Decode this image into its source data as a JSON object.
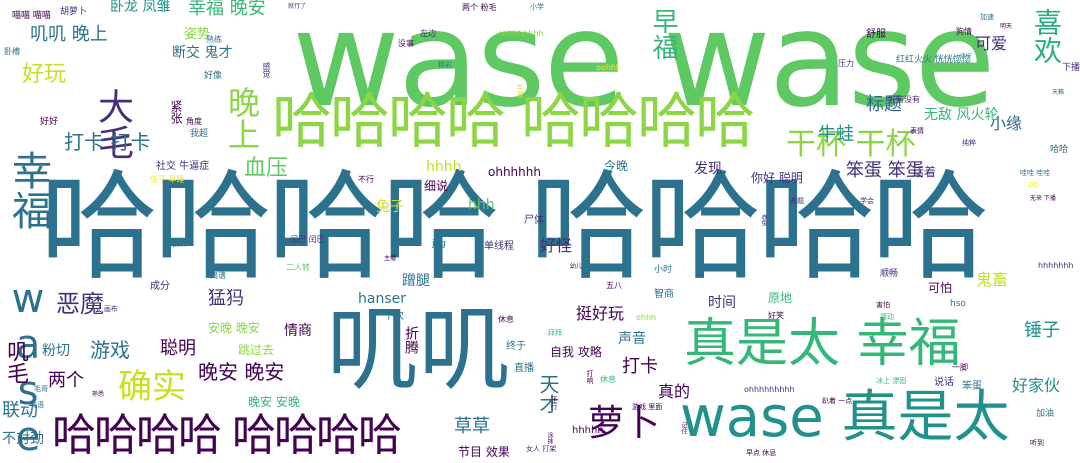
{
  "palette": {
    "lime": "#8cd645",
    "green": "#5ec962",
    "teal_green": "#35b779",
    "teal": "#21918c",
    "blue_teal": "#2c728e",
    "blue": "#3b528b",
    "purple": "#472d7b",
    "dark_purple": "#440154",
    "yellow": "#c8e020",
    "bright_yellow": "#fde725",
    "light_green": "#addc30",
    "aqua": "#28ae80",
    "sea": "#1f9e89",
    "navy": "#31688e"
  },
  "words": [
    {
      "text": "wase wase",
      "size": 132,
      "color": "#5ec962",
      "vertical": false
    },
    {
      "text": "哈哈哈哈 哈哈哈哈",
      "size": 118,
      "color": "#2c728e",
      "vertical": false
    },
    {
      "text": "哈哈哈哈 哈哈哈哈",
      "size": 60,
      "color": "#8cd645",
      "vertical": false
    },
    {
      "text": "叽叽",
      "size": 92,
      "color": "#2c728e",
      "vertical": false
    },
    {
      "text": "真是太 幸福",
      "size": 52,
      "color": "#35b779",
      "vertical": false
    },
    {
      "text": "wase 真是太",
      "size": 56,
      "color": "#21918c",
      "vertical": false
    },
    {
      "text": "哈哈哈哈 哈哈哈哈",
      "size": 44,
      "color": "#440154",
      "vertical": false
    },
    {
      "text": "幸福 wase",
      "size": 40,
      "color": "#2c728e",
      "vertical": true
    },
    {
      "text": "大毛",
      "size": 36,
      "color": "#472d7b",
      "vertical": true
    },
    {
      "text": "晚上",
      "size": 32,
      "color": "#8cd645",
      "vertical": true
    },
    {
      "text": "干杯 干杯",
      "size": 30,
      "color": "#8cd645",
      "vertical": false
    },
    {
      "text": "萝卜",
      "size": 36,
      "color": "#440154",
      "vertical": false
    },
    {
      "text": "确实",
      "size": 34,
      "color": "#c8e020",
      "vertical": false
    },
    {
      "text": "喜欢",
      "size": 28,
      "color": "#28ae80",
      "vertical": true
    },
    {
      "text": "早福",
      "size": 26,
      "color": "#35b779",
      "vertical": true
    },
    {
      "text": "好玩",
      "size": 22,
      "color": "#c8e020",
      "vertical": false
    },
    {
      "text": "幸福 晚安",
      "size": 18,
      "color": "#35b779",
      "vertical": false
    },
    {
      "text": "卧龙 凤雏",
      "size": 14,
      "color": "#21918c",
      "vertical": false
    },
    {
      "text": "叽叽 晚上",
      "size": 18,
      "color": "#2c728e",
      "vertical": false
    },
    {
      "text": "断交 鬼才",
      "size": 14,
      "color": "#2c728e",
      "vertical": false
    },
    {
      "text": "姿势",
      "size": 13,
      "color": "#8cd645",
      "vertical": false
    },
    {
      "text": "可爱",
      "size": 16,
      "color": "#472d7b",
      "vertical": false
    },
    {
      "text": "标题",
      "size": 18,
      "color": "#31688e",
      "vertical": false
    },
    {
      "text": "小缘",
      "size": 16,
      "color": "#31688e",
      "vertical": false
    },
    {
      "text": "无敌 风火轮",
      "size": 14,
      "color": "#35b779",
      "vertical": false
    },
    {
      "text": "牛蛙",
      "size": 18,
      "color": "#21918c",
      "vertical": false
    },
    {
      "text": "打卡 打卡",
      "size": 20,
      "color": "#2c728e",
      "vertical": false
    },
    {
      "text": "血压",
      "size": 22,
      "color": "#5ec962",
      "vertical": false
    },
    {
      "text": "笨蛋 笨蛋",
      "size": 18,
      "color": "#472d7b",
      "vertical": false
    },
    {
      "text": "发现",
      "size": 14,
      "color": "#472d7b",
      "vertical": false
    },
    {
      "text": "你好 聪明",
      "size": 12,
      "color": "#472d7b",
      "vertical": false
    },
    {
      "text": "hhhh",
      "size": 14,
      "color": "#c8e020",
      "vertical": false
    },
    {
      "text": "ohhhhhh",
      "size": 12,
      "color": "#440154",
      "vertical": false
    },
    {
      "text": "兔子",
      "size": 14,
      "color": "#c8e020",
      "vertical": false
    },
    {
      "text": "hhh",
      "size": 14,
      "color": "#5ec962",
      "vertical": false
    },
    {
      "text": "好怪",
      "size": 16,
      "color": "#472d7b",
      "vertical": false
    },
    {
      "text": "恶魔",
      "size": 24,
      "color": "#472d7b",
      "vertical": false
    },
    {
      "text": "猛犸",
      "size": 18,
      "color": "#472d7b",
      "vertical": false
    },
    {
      "text": "游戏",
      "size": 20,
      "color": "#2c728e",
      "vertical": false
    },
    {
      "text": "聪明",
      "size": 18,
      "color": "#440154",
      "vertical": false
    },
    {
      "text": "挺好玩",
      "size": 16,
      "color": "#440154",
      "vertical": false
    },
    {
      "text": "时间",
      "size": 14,
      "color": "#472d7b",
      "vertical": false
    },
    {
      "text": "晚安 晚安",
      "size": 20,
      "color": "#440154",
      "vertical": false
    },
    {
      "text": "两个",
      "size": 18,
      "color": "#440154",
      "vertical": false
    },
    {
      "text": "联动",
      "size": 18,
      "color": "#2c728e",
      "vertical": false
    },
    {
      "text": "粉切",
      "size": 14,
      "color": "#2c728e",
      "vertical": false
    },
    {
      "text": "叽毛",
      "size": 22,
      "color": "#440154",
      "vertical": true
    },
    {
      "text": "不对劲",
      "size": 14,
      "color": "#2c728e",
      "vertical": false
    },
    {
      "text": "天才",
      "size": 20,
      "color": "#2c728e",
      "vertical": true
    },
    {
      "text": "草草",
      "size": 18,
      "color": "#2c728e",
      "vertical": false
    },
    {
      "text": "打卡",
      "size": 18,
      "color": "#440154",
      "vertical": false
    },
    {
      "text": "真的",
      "size": 16,
      "color": "#440154",
      "vertical": false
    },
    {
      "text": "锤子",
      "size": 18,
      "color": "#21918c",
      "vertical": false
    },
    {
      "text": "好家伙",
      "size": 16,
      "color": "#21918c",
      "vertical": false
    },
    {
      "text": "鬼畜",
      "size": 16,
      "color": "#c8e020",
      "vertical": false
    },
    {
      "text": "可怕",
      "size": 12,
      "color": "#440154",
      "vertical": false
    },
    {
      "text": "情商",
      "size": 14,
      "color": "#440154",
      "vertical": false
    },
    {
      "text": "声音",
      "size": 14,
      "color": "#2c728e",
      "vertical": false
    },
    {
      "text": "蹭腿",
      "size": 14,
      "color": "#2c728e",
      "vertical": false
    },
    {
      "text": "hanser",
      "size": 14,
      "color": "#2c728e",
      "vertical": false
    },
    {
      "text": "晚安 安晚",
      "size": 12,
      "color": "#35b779",
      "vertical": false
    },
    {
      "text": "跳过去",
      "size": 12,
      "color": "#8cd645",
      "vertical": false
    },
    {
      "text": "自我 攻略",
      "size": 12,
      "color": "#440154",
      "vertical": false
    },
    {
      "text": "节目 效果",
      "size": 12,
      "color": "#440154",
      "vertical": false
    },
    {
      "text": "安晚 晚安",
      "size": 12,
      "color": "#8cd645",
      "vertical": false
    },
    {
      "text": "细说",
      "size": 12,
      "color": "#440154",
      "vertical": false
    },
    {
      "text": "今晚",
      "size": 12,
      "color": "#2c728e",
      "vertical": false
    },
    {
      "text": "活着",
      "size": 12,
      "color": "#472d7b",
      "vertical": false
    },
    {
      "text": "社交 牛逼症",
      "size": 10,
      "color": "#472d7b",
      "vertical": false
    },
    {
      "text": "成分",
      "size": 10,
      "color": "#472d7b",
      "vertical": false
    },
    {
      "text": "尸体",
      "size": 10,
      "color": "#472d7b",
      "vertical": false
    },
    {
      "text": "单线程",
      "size": 10,
      "color": "#472d7b",
      "vertical": false
    },
    {
      "text": "原地",
      "size": 12,
      "color": "#35b779",
      "vertical": false
    },
    {
      "text": "智商",
      "size": 10,
      "color": "#2c728e",
      "vertical": false
    },
    {
      "text": "下次",
      "size": 10,
      "color": "#2c728e",
      "vertical": false
    },
    {
      "text": "终于",
      "size": 10,
      "color": "#2c728e",
      "vertical": false
    },
    {
      "text": "直播",
      "size": 10,
      "color": "#2c728e",
      "vertical": false
    },
    {
      "text": "hhhhh",
      "size": 10,
      "color": "#440154",
      "vertical": false
    },
    {
      "text": "说话",
      "size": 10,
      "color": "#472d7b",
      "vertical": false
    },
    {
      "text": "笨蛋",
      "size": 10,
      "color": "#2c728e",
      "vertical": false
    },
    {
      "text": "加油",
      "size": 9,
      "color": "#2c728e",
      "vertical": false
    },
    {
      "text": "舒服",
      "size": 10,
      "color": "#440154",
      "vertical": false
    },
    {
      "text": "红红火火 恍恍惚惚",
      "size": 9,
      "color": "#2c728e",
      "vertical": false
    },
    {
      "text": "压力",
      "size": 8,
      "color": "#472d7b",
      "vertical": false
    },
    {
      "text": "我超",
      "size": 9,
      "color": "#2c728e",
      "vertical": false
    },
    {
      "text": "好好",
      "size": 9,
      "color": "#440154",
      "vertical": false
    },
    {
      "text": "好像",
      "size": 9,
      "color": "#2c728e",
      "vertical": false
    },
    {
      "text": "熟练",
      "size": 8,
      "color": "#2c728e",
      "vertical": false
    },
    {
      "text": "角度",
      "size": 8,
      "color": "#440154",
      "vertical": false
    },
    {
      "text": "紧张",
      "size": 12,
      "color": "#440154",
      "vertical": true
    },
    {
      "text": "胡萝卜",
      "size": 9,
      "color": "#472d7b",
      "vertical": false
    },
    {
      "text": "喵喵 喵喵",
      "size": 9,
      "color": "#440154",
      "vertical": false
    },
    {
      "text": "卧槽",
      "size": 8,
      "color": "#2c728e",
      "vertical": false
    },
    {
      "text": "两个 粉毛",
      "size": 8,
      "color": "#440154",
      "vertical": false
    },
    {
      "text": "小学",
      "size": 7,
      "color": "#2c728e",
      "vertical": false
    },
    {
      "text": "没事",
      "size": 8,
      "color": "#440154",
      "vertical": false
    },
    {
      "text": "左边",
      "size": 8,
      "color": "#472d7b",
      "vertical": false
    },
    {
      "text": "ohhhhhhhh",
      "size": 8,
      "color": "#8cd645",
      "vertical": false
    },
    {
      "text": "oohhh",
      "size": 8,
      "color": "#fde725",
      "vertical": false
    },
    {
      "text": "精彩",
      "size": 7,
      "color": "#2c728e",
      "vertical": false
    },
    {
      "text": "jpg",
      "size": 9,
      "color": "#2c728e",
      "vertical": false
    },
    {
      "text": "五八",
      "size": 8,
      "color": "#440154",
      "vertical": false
    },
    {
      "text": "小时",
      "size": 9,
      "color": "#2c728e",
      "vertical": false
    },
    {
      "text": "顺畅",
      "size": 9,
      "color": "#472d7b",
      "vertical": false
    },
    {
      "text": "hhhhhhh",
      "size": 8,
      "color": "#472d7b",
      "vertical": false
    },
    {
      "text": "休息",
      "size": 8,
      "color": "#440154",
      "vertical": false
    },
    {
      "text": "hso",
      "size": 9,
      "color": "#2c728e",
      "vertical": false
    },
    {
      "text": "好笑",
      "size": 8,
      "color": "#440154",
      "vertical": false
    },
    {
      "text": "ohhhhhhhhh",
      "size": 8,
      "color": "#472d7b",
      "vertical": false
    },
    {
      "text": "一脚",
      "size": 8,
      "color": "#440154",
      "vertical": false
    },
    {
      "text": "休息",
      "size": 8,
      "color": "#35b779",
      "vertical": false
    },
    {
      "text": "游戏 里面",
      "size": 7,
      "color": "#440154",
      "vertical": false
    },
    {
      "text": "女人 打架",
      "size": 7,
      "color": "#472d7b",
      "vertical": false
    },
    {
      "text": "早点 休息",
      "size": 7,
      "color": "#440154",
      "vertical": false
    },
    {
      "text": "趴着 一点",
      "size": 7,
      "color": "#440154",
      "vertical": false
    },
    {
      "text": "冰上 漂固",
      "size": 7,
      "color": "#35b779",
      "vertical": false
    },
    {
      "text": "听到",
      "size": 7,
      "color": "#440154",
      "vertical": false
    },
    {
      "text": "命题",
      "size": 7,
      "color": "#472d7b",
      "vertical": false
    },
    {
      "text": "学会",
      "size": 7,
      "color": "#472d7b",
      "vertical": false
    },
    {
      "text": "不行",
      "size": 8,
      "color": "#440154",
      "vertical": false
    },
    {
      "text": "操作",
      "size": 8,
      "color": "#2c728e",
      "vertical": false
    },
    {
      "text": "离谱",
      "size": 8,
      "color": "#2c728e",
      "vertical": false
    },
    {
      "text": "闰巴 闰巴",
      "size": 8,
      "color": "#472d7b",
      "vertical": false
    },
    {
      "text": "二人转",
      "size": 8,
      "color": "#5ec962",
      "vertical": false
    },
    {
      "text": "哇哇 哇哇",
      "size": 7,
      "color": "#2c728e",
      "vertical": false
    },
    {
      "text": "拜拜",
      "size": 7,
      "color": "#35b779",
      "vertical": false
    },
    {
      "text": "粤语",
      "size": 7,
      "color": "#2c728e",
      "vertical": false
    },
    {
      "text": "熟悉",
      "size": 6,
      "color": "#440154",
      "vertical": false
    },
    {
      "text": "画布",
      "size": 7,
      "color": "#472d7b",
      "vertical": false
    },
    {
      "text": "DD",
      "size": 7,
      "color": "#fde725",
      "vertical": false
    },
    {
      "text": "无来 下播",
      "size": 6,
      "color": "#440154",
      "vertical": false
    },
    {
      "text": "幼儿",
      "size": 6,
      "color": "#440154",
      "vertical": false
    },
    {
      "text": "主播",
      "size": 6,
      "color": "#440154",
      "vertical": false
    },
    {
      "text": "表情",
      "size": 7,
      "color": "#440154",
      "vertical": false
    },
    {
      "text": "感动",
      "size": 7,
      "color": "#35b779",
      "vertical": false
    },
    {
      "text": "害怕",
      "size": 7,
      "color": "#440154",
      "vertical": false
    },
    {
      "text": "就行了",
      "size": 6,
      "color": "#472d7b",
      "vertical": false
    },
    {
      "text": "加速",
      "size": 7,
      "color": "#2c728e",
      "vertical": false
    },
    {
      "text": "明天",
      "size": 6,
      "color": "#440154",
      "vertical": false
    },
    {
      "text": "狗情",
      "size": 8,
      "color": "#440154",
      "vertical": false
    },
    {
      "text": "传下",
      "size": 6,
      "color": "#35b779",
      "vertical": false
    },
    {
      "text": "下播",
      "size": 9,
      "color": "#472d7b",
      "vertical": false
    },
    {
      "text": "天籁",
      "size": 6,
      "color": "#2c728e",
      "vertical": false
    },
    {
      "text": "哈哈",
      "size": 9,
      "color": "#2c728e",
      "vertical": false
    },
    {
      "text": "纯粹",
      "size": 7,
      "color": "#472d7b",
      "vertical": false
    },
    {
      "text": "好有没有",
      "size": 8,
      "color": "#472d7b",
      "vertical": false
    },
    {
      "text": "感觉",
      "size": 8,
      "color": "#472d7b",
      "vertical": true
    },
    {
      "text": "还行",
      "size": 7,
      "color": "#440154",
      "vertical": true
    },
    {
      "text": "牛逼",
      "size": 7,
      "color": "#c8e020",
      "vertical": true
    },
    {
      "text": "打响",
      "size": 7,
      "color": "#440154",
      "vertical": true
    },
    {
      "text": "折腾",
      "size": 14,
      "color": "#440154",
      "vertical": true
    },
    {
      "text": "记住",
      "size": 6,
      "color": "#440154",
      "vertical": true
    },
    {
      "text": "涂抹",
      "size": 6,
      "color": "#440154",
      "vertical": true
    },
    {
      "text": "赤兔",
      "size": 6,
      "color": "#472d7b",
      "vertical": true
    },
    {
      "text": "兔子 早睡",
      "size": 8,
      "color": "#fde725",
      "vertical": false
    },
    {
      "text": "ohhh",
      "size": 8,
      "color": "#8cd645",
      "vertical": false
    },
    {
      "text": "毛哥",
      "size": 7,
      "color": "#2c728e",
      "vertical": false
    }
  ]
}
